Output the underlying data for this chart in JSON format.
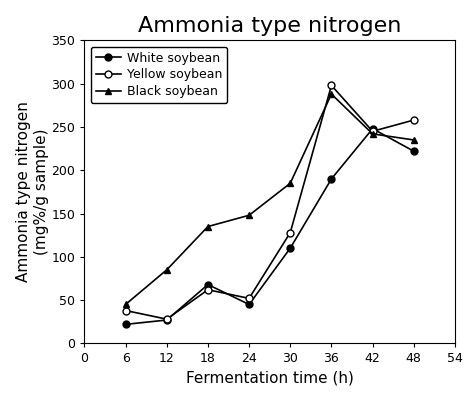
{
  "title": "Ammonia type nitrogen",
  "xlabel": "Fermentation time (h)",
  "ylabel": "Ammonia type nitrogen\n(mg%/g sample)",
  "x": [
    6,
    12,
    18,
    24,
    30,
    36,
    42,
    48
  ],
  "white_soybean": [
    22,
    27,
    68,
    45,
    110,
    190,
    248,
    222
  ],
  "yellow_soybean": [
    38,
    28,
    62,
    52,
    128,
    298,
    245,
    258
  ],
  "black_soybean": [
    45,
    85,
    135,
    148,
    185,
    288,
    242,
    235
  ],
  "white_label": "White soybean",
  "yellow_label": "Yellow soybean",
  "black_label": "Black soybean",
  "xlim": [
    0,
    54
  ],
  "ylim": [
    0,
    350
  ],
  "xticks": [
    0,
    6,
    12,
    18,
    24,
    30,
    36,
    42,
    48,
    54
  ],
  "yticks": [
    0,
    50,
    100,
    150,
    200,
    250,
    300,
    350
  ],
  "title_fontsize": 16,
  "label_fontsize": 11,
  "tick_fontsize": 9,
  "legend_fontsize": 9,
  "bg_color": "#ffffff",
  "line_color": "#000000"
}
